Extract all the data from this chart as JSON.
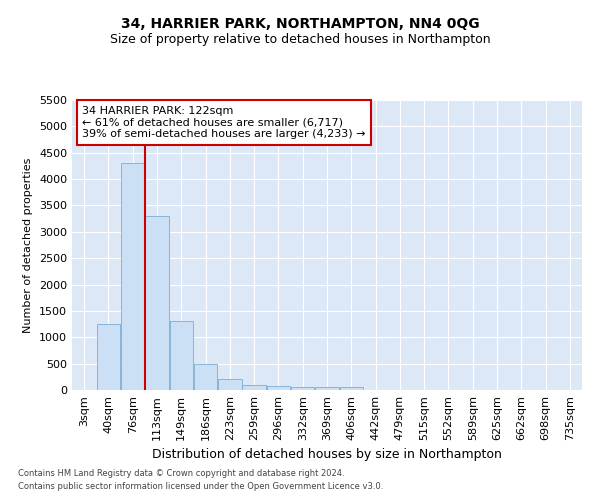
{
  "title": "34, HARRIER PARK, NORTHAMPTON, NN4 0QG",
  "subtitle": "Size of property relative to detached houses in Northampton",
  "xlabel": "Distribution of detached houses by size in Northampton",
  "ylabel": "Number of detached properties",
  "categories": [
    "3sqm",
    "40sqm",
    "76sqm",
    "113sqm",
    "149sqm",
    "186sqm",
    "223sqm",
    "259sqm",
    "296sqm",
    "332sqm",
    "369sqm",
    "406sqm",
    "442sqm",
    "479sqm",
    "515sqm",
    "552sqm",
    "589sqm",
    "625sqm",
    "662sqm",
    "698sqm",
    "735sqm"
  ],
  "values": [
    0,
    1250,
    4300,
    3300,
    1300,
    500,
    200,
    100,
    75,
    55,
    50,
    50,
    0,
    0,
    0,
    0,
    0,
    0,
    0,
    0,
    0
  ],
  "bar_color": "#cce0f5",
  "bar_edge_color": "#7aadd4",
  "vline_color": "#cc0000",
  "vline_x_index": 2.5,
  "annotation_text": "34 HARRIER PARK: 122sqm\n← 61% of detached houses are smaller (6,717)\n39% of semi-detached houses are larger (4,233) →",
  "annotation_box_facecolor": "#ffffff",
  "annotation_box_edgecolor": "#cc0000",
  "ylim": [
    0,
    5500
  ],
  "yticks": [
    0,
    500,
    1000,
    1500,
    2000,
    2500,
    3000,
    3500,
    4000,
    4500,
    5000,
    5500
  ],
  "background_color": "#dde8f7",
  "grid_color": "#ffffff",
  "footer1": "Contains HM Land Registry data © Crown copyright and database right 2024.",
  "footer2": "Contains public sector information licensed under the Open Government Licence v3.0.",
  "title_fontsize": 10,
  "subtitle_fontsize": 9,
  "ylabel_fontsize": 8,
  "xlabel_fontsize": 9,
  "tick_fontsize": 8,
  "annotation_fontsize": 8,
  "footer_fontsize": 6
}
